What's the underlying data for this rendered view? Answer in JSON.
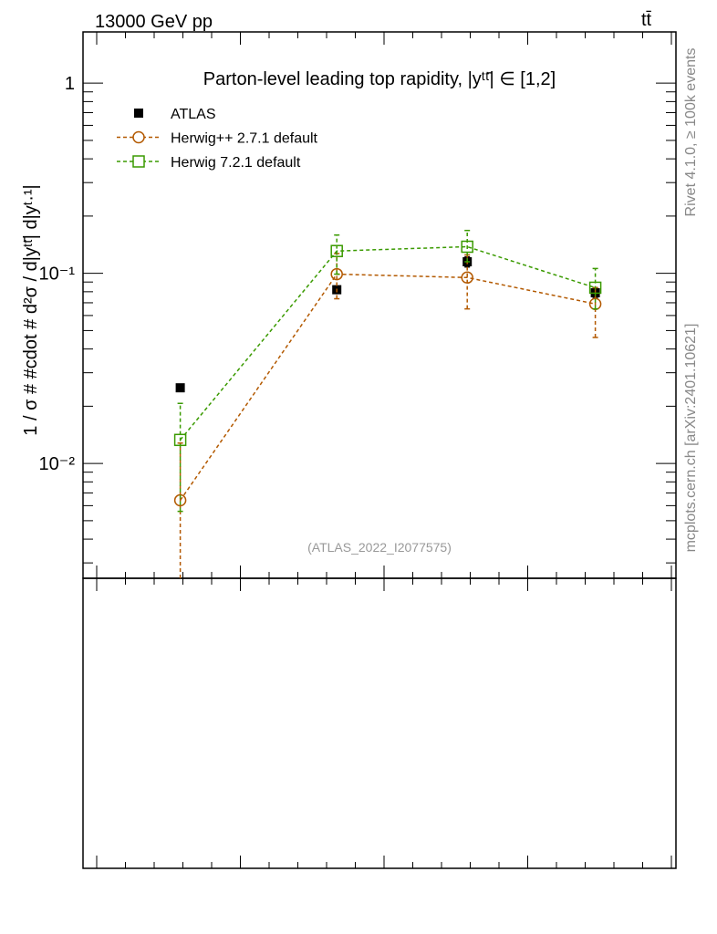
{
  "header": {
    "energy_label": "13000 GeV pp",
    "process_label": "tt̄"
  },
  "side_labels": {
    "rivet": "Rivet 4.1.0, ≥ 100k events",
    "mcplots": "mcplots.cern.ch [arXiv:2401.10621]"
  },
  "chart_data": {
    "type": "scatter",
    "title": "Parton-level leading top rapidity, |yᵗᵗ̄| ∈ [1,2]",
    "xlabel": "",
    "ylabel": "1 / σ # #cdot # d²σ / d|yᵗᵗ̄| d|yᵗ·¹|",
    "yscale": "log",
    "ylim": [
      0.00249,
      1.86
    ],
    "xlim": [
      0,
      2.5
    ],
    "ytick_labels": [
      {
        "value": 1,
        "label": "1"
      },
      {
        "value": 0.1,
        "label": "10⁻¹"
      },
      {
        "value": 0.01,
        "label": "10⁻²"
      }
    ],
    "legend_position": "top-left",
    "analysis_label": "(ATLAS_2022_I2077575)",
    "x": [
      0.41,
      1.07,
      1.62,
      2.16
    ],
    "series": [
      {
        "name": "ATLAS",
        "color": "#000000",
        "marker": "filled-square",
        "line": false,
        "values": [
          0.025,
          0.082,
          0.115,
          0.079
        ],
        "err_low": [
          0.025,
          0.082,
          0.108,
          0.074
        ],
        "err_high": [
          0.025,
          0.082,
          0.122,
          0.084
        ]
      },
      {
        "name": "Herwig++ 2.7.1 default",
        "color": "#b35900",
        "marker": "open-circle",
        "line": true,
        "values": [
          0.0064,
          0.099,
          0.095,
          0.069
        ],
        "err_low": [
          0.002,
          0.0735,
          0.065,
          0.046
        ],
        "err_high": [
          0.0128,
          0.127,
          0.125,
          0.084
        ]
      },
      {
        "name": "Herwig 7.2.1 default",
        "color": "#3a9a00",
        "marker": "open-square",
        "line": true,
        "values": [
          0.0133,
          0.131,
          0.138,
          0.084
        ],
        "err_low": [
          0.0056,
          0.099,
          0.115,
          0.065
        ],
        "err_high": [
          0.0207,
          0.159,
          0.168,
          0.106
        ]
      }
    ]
  }
}
